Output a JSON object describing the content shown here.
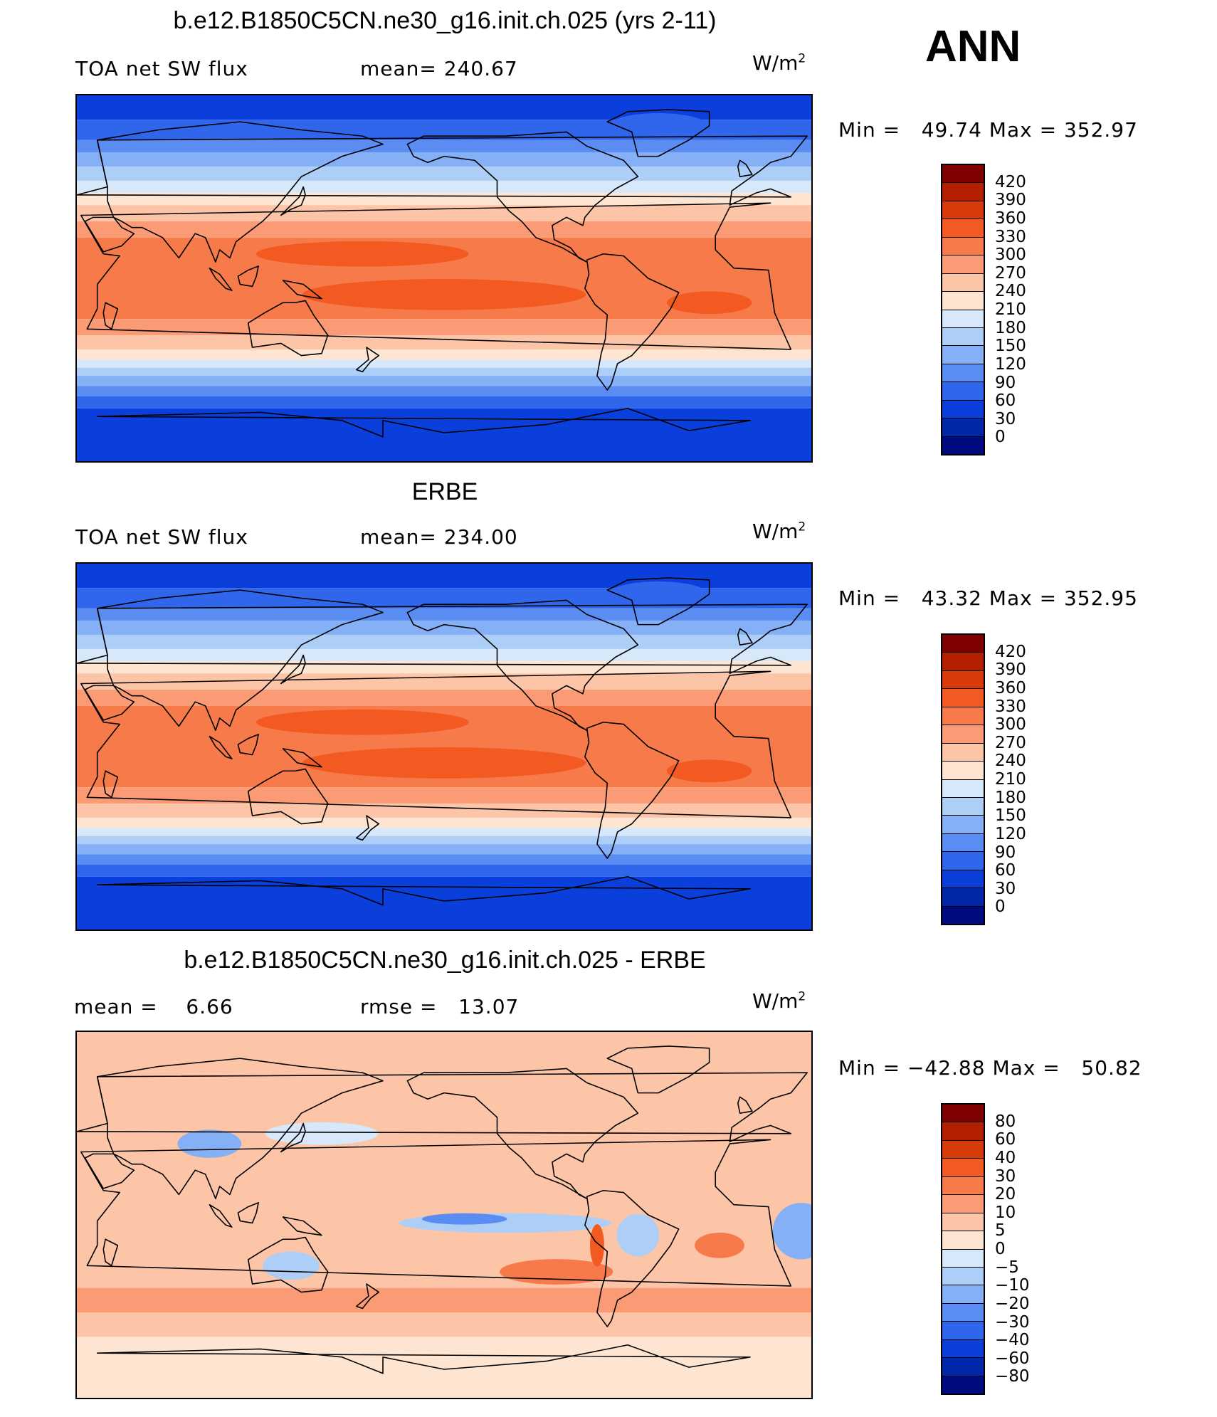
{
  "season": "ANN",
  "panels": [
    {
      "title": "b.e12.B1850C5CN.ne30_g16.init.ch.025 (yrs 2-11)",
      "left_label": "TOA net SW flux",
      "center_label": "mean= 240.67",
      "units_base": "W/m",
      "units_sup": "2",
      "minmax": "Min =   49.74 Max = 352.97",
      "colorbar": {
        "levels": [
          "420",
          "390",
          "360",
          "330",
          "300",
          "270",
          "240",
          "210",
          "180",
          "150",
          "120",
          "90",
          "60",
          "30",
          "0"
        ],
        "colors": [
          "#7f0000",
          "#b22000",
          "#d93a0c",
          "#f25a22",
          "#f77a4a",
          "#fa9b75",
          "#fcc5a8",
          "#fde5d2",
          "#d6e8fa",
          "#adcff7",
          "#85b0f5",
          "#5a8cf2",
          "#2f66ec",
          "#0a3fdc",
          "#0226a8",
          "#000b80"
        ]
      },
      "field": "flux"
    },
    {
      "title": "ERBE",
      "left_label": "TOA net SW flux",
      "center_label": "mean= 234.00",
      "units_base": "W/m",
      "units_sup": "2",
      "minmax": "Min =   43.32 Max = 352.95",
      "colorbar": {
        "levels": [
          "420",
          "390",
          "360",
          "330",
          "300",
          "270",
          "240",
          "210",
          "180",
          "150",
          "120",
          "90",
          "60",
          "30",
          "0"
        ],
        "colors": [
          "#7f0000",
          "#b22000",
          "#d93a0c",
          "#f25a22",
          "#f77a4a",
          "#fa9b75",
          "#fcc5a8",
          "#fde5d2",
          "#d6e8fa",
          "#adcff7",
          "#85b0f5",
          "#5a8cf2",
          "#2f66ec",
          "#0a3fdc",
          "#0226a8",
          "#000b80"
        ]
      },
      "field": "flux"
    },
    {
      "title": "b.e12.B1850C5CN.ne30_g16.init.ch.025 - ERBE",
      "left_label": "mean =    6.66",
      "center_label": "rmse =   13.07",
      "units_base": "W/m",
      "units_sup": "2",
      "minmax": "Min = −42.88 Max =   50.82",
      "colorbar": {
        "levels": [
          "80",
          "60",
          "40",
          "30",
          "20",
          "10",
          "5",
          "0",
          "−5",
          "−10",
          "−20",
          "−30",
          "−40",
          "−60",
          "−80"
        ],
        "colors": [
          "#7f0000",
          "#b22000",
          "#d93a0c",
          "#f25a22",
          "#f77a4a",
          "#fa9b75",
          "#fcc5a8",
          "#fde5d2",
          "#d6e8fa",
          "#adcff7",
          "#85b0f5",
          "#5a8cf2",
          "#2f66ec",
          "#0a3fdc",
          "#0226a8",
          "#000b80"
        ]
      },
      "field": "diff"
    }
  ]
}
